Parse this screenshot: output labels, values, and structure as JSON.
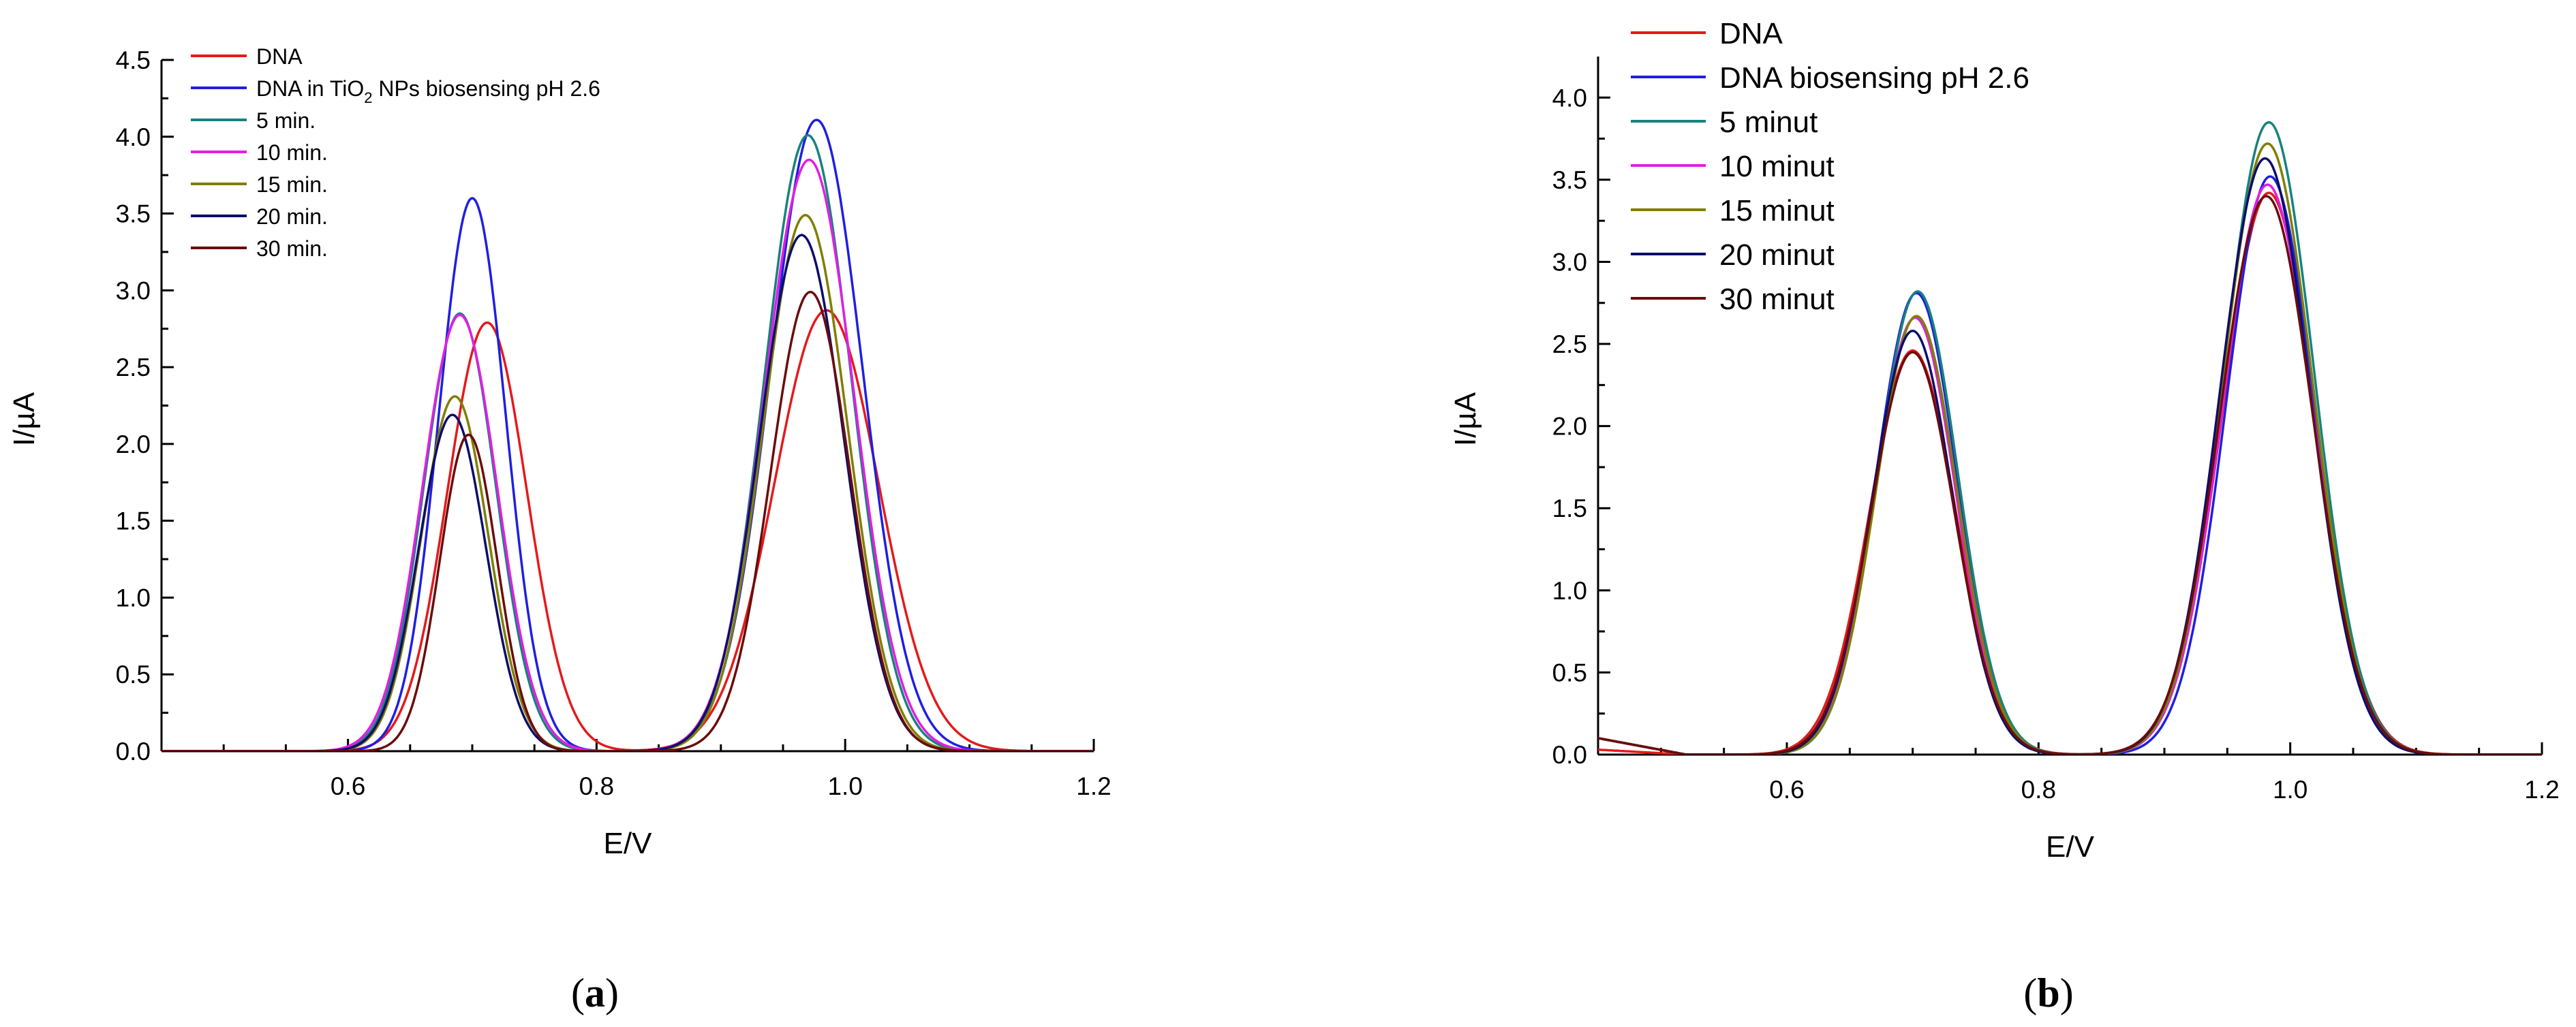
{
  "chart_data": [
    {
      "type": "line",
      "panel": "a",
      "caption_letter": "a",
      "xlabel": "E/V",
      "ylabel": "I/µA",
      "xlim": [
        0.45,
        1.2
      ],
      "ylim": [
        0.0,
        4.5
      ],
      "xticks": [
        0.6,
        0.8,
        1.0,
        1.2
      ],
      "xtick_labels": [
        "0.6",
        "0.8",
        "1.0",
        "1.2"
      ],
      "yticks": [
        0.0,
        0.5,
        1.0,
        1.5,
        2.0,
        2.5,
        3.0,
        3.5,
        4.0,
        4.5
      ],
      "ytick_labels": [
        "0.0",
        "0.5",
        "1.0",
        "1.5",
        "2.0",
        "2.5",
        "3.0",
        "3.5",
        "4.0",
        "4.5"
      ],
      "legend_position": "top-left",
      "series": [
        {
          "name": "DNA",
          "label_main": "DNA",
          "color": "#e41a1c",
          "peaks": [
            {
              "e": 0.712,
              "i": 2.79,
              "w": 0.032
            },
            {
              "e": 0.985,
              "i": 2.87,
              "w": 0.042
            }
          ]
        },
        {
          "name": "DNA in TiO2 NPs biosensing pH 2.6",
          "label_main": "DNA in TiO",
          "label_sub": "2",
          "label_rest": " NPs biosensing pH 2.6",
          "color": "#1f1fe0",
          "peaks": [
            {
              "e": 0.7,
              "i": 3.6,
              "w": 0.027
            },
            {
              "e": 0.977,
              "i": 4.11,
              "w": 0.037
            }
          ]
        },
        {
          "name": "5 min.",
          "label_main": "5 min.",
          "color": "#17827f",
          "peaks": [
            {
              "e": 0.69,
              "i": 2.85,
              "w": 0.029
            },
            {
              "e": 0.97,
              "i": 4.01,
              "w": 0.035
            }
          ]
        },
        {
          "name": "10 min.",
          "label_main": "10 min.",
          "color": "#e21ee2",
          "peaks": [
            {
              "e": 0.69,
              "i": 2.84,
              "w": 0.03
            },
            {
              "e": 0.971,
              "i": 3.85,
              "w": 0.036
            }
          ]
        },
        {
          "name": "15 min.",
          "label_main": "15 min.",
          "color": "#7f7f00",
          "peaks": [
            {
              "e": 0.686,
              "i": 2.31,
              "w": 0.027
            },
            {
              "e": 0.968,
              "i": 3.49,
              "w": 0.034
            }
          ]
        },
        {
          "name": "20 min.",
          "label_main": "20 min.",
          "color": "#0d0d6b",
          "peaks": [
            {
              "e": 0.684,
              "i": 2.19,
              "w": 0.027
            },
            {
              "e": 0.965,
              "i": 3.36,
              "w": 0.034
            }
          ]
        },
        {
          "name": "30 min.",
          "label_main": "30 min.",
          "color": "#6b0c0c",
          "peaks": [
            {
              "e": 0.697,
              "i": 2.06,
              "w": 0.023
            },
            {
              "e": 0.972,
              "i": 2.99,
              "w": 0.032
            }
          ]
        }
      ]
    },
    {
      "type": "line",
      "panel": "b",
      "caption_letter": "b",
      "xlabel": "E/V",
      "ylabel": "I/µA",
      "xlim": [
        0.45,
        1.2
      ],
      "ylim": [
        0.0,
        4.25
      ],
      "xticks": [
        0.6,
        0.8,
        1.0,
        1.2
      ],
      "xtick_labels": [
        "0.6",
        "0.8",
        "1.0",
        "1.2"
      ],
      "yticks": [
        0.0,
        0.5,
        1.0,
        1.5,
        2.0,
        2.5,
        3.0,
        3.5,
        4.0
      ],
      "ytick_labels": [
        "0.0",
        "0.5",
        "1.0",
        "1.5",
        "2.0",
        "2.5",
        "3.0",
        "3.5",
        "4.0"
      ],
      "legend_position": "top-left",
      "series": [
        {
          "name": "DNA",
          "label_main": "DNA",
          "color": "#e41a1c",
          "peaks": [
            {
              "e": 0.7,
              "i": 2.46,
              "w": 0.034
            },
            {
              "e": 0.983,
              "i": 3.42,
              "w": 0.037
            }
          ]
        },
        {
          "name": "DNA biosensing pH 2.6",
          "label_main": "DNA biosensing pH 2.6",
          "color": "#1f1fe0",
          "peaks": [
            {
              "e": 0.703,
              "i": 2.81,
              "w": 0.032
            },
            {
              "e": 0.984,
              "i": 3.52,
              "w": 0.035
            }
          ]
        },
        {
          "name": "5 minut",
          "label_main": "5 minut",
          "color": "#17827f",
          "peaks": [
            {
              "e": 0.704,
              "i": 2.82,
              "w": 0.032
            },
            {
              "e": 0.983,
              "i": 3.85,
              "w": 0.036
            }
          ]
        },
        {
          "name": "10 minut",
          "label_main": "10 minut",
          "color": "#e21ee2",
          "peaks": [
            {
              "e": 0.702,
              "i": 2.66,
              "w": 0.032
            },
            {
              "e": 0.982,
              "i": 3.47,
              "w": 0.036
            }
          ]
        },
        {
          "name": "15 minut",
          "label_main": "15 minut",
          "color": "#7f7f00",
          "peaks": [
            {
              "e": 0.703,
              "i": 2.67,
              "w": 0.032
            },
            {
              "e": 0.982,
              "i": 3.72,
              "w": 0.036
            }
          ]
        },
        {
          "name": "20 minut",
          "label_main": "20 minut",
          "color": "#0d0d6b",
          "peaks": [
            {
              "e": 0.7,
              "i": 2.58,
              "w": 0.032
            },
            {
              "e": 0.98,
              "i": 3.63,
              "w": 0.036
            }
          ]
        },
        {
          "name": "30 minut",
          "label_main": "30 minut",
          "color": "#6b0c0c",
          "peaks": [
            {
              "e": 0.7,
              "i": 2.45,
              "w": 0.033
            },
            {
              "e": 0.981,
              "i": 3.4,
              "w": 0.037
            }
          ]
        }
      ]
    }
  ]
}
